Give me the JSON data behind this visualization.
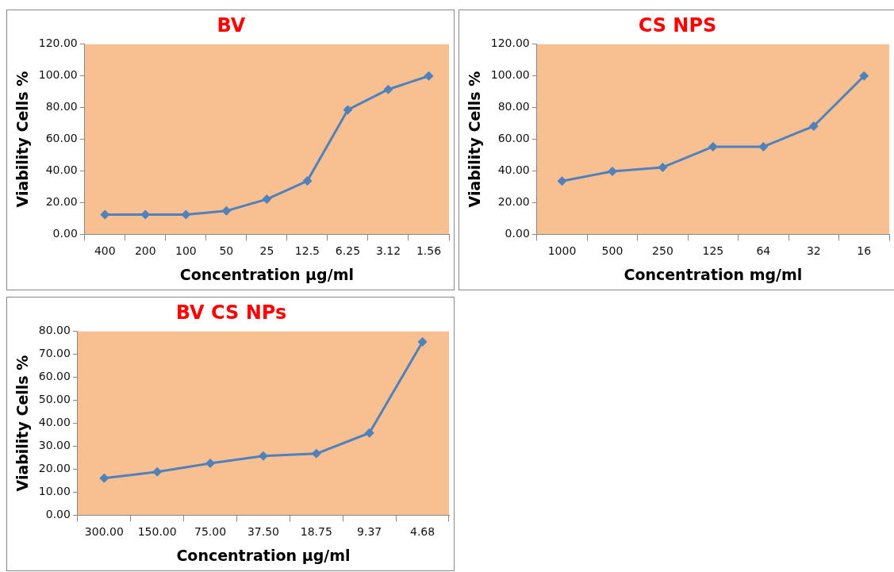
{
  "chart_data": [
    {
      "type": "line",
      "title": "BV",
      "xlabel": "Concentration µg/ml",
      "ylabel": "Viability Cells %",
      "categories": [
        "400",
        "200",
        "100",
        "50",
        "25",
        "12.5",
        "6.25",
        "3.12",
        "1.56"
      ],
      "series": [
        {
          "color": "#4f81bd",
          "values": [
            12.5,
            12.5,
            12.5,
            14.8,
            22.2,
            33.7,
            78.6,
            91.5,
            100
          ]
        }
      ],
      "ylim": [
        0,
        120
      ],
      "yticks": [
        {
          "value": 0,
          "label": "0.00"
        },
        {
          "value": 20,
          "label": "20.00"
        },
        {
          "value": 40,
          "label": "40.00"
        },
        {
          "value": 60,
          "label": "60.00"
        },
        {
          "value": 80,
          "label": "80.00"
        },
        {
          "value": 100,
          "label": "100.00"
        },
        {
          "value": 120,
          "label": "120.00"
        }
      ],
      "grid": false,
      "legend": false,
      "marker": "diamond",
      "line_style": "solid"
    },
    {
      "type": "line",
      "title": "CS NPS",
      "xlabel": "Concentration mg/ml",
      "ylabel": "Viability Cells %",
      "categories": [
        "1000",
        "500",
        "250",
        "125",
        "64",
        "32",
        "16"
      ],
      "series": [
        {
          "color": "#4f81bd",
          "values": [
            33.6,
            39.8,
            42.3,
            55.3,
            55.3,
            68.3,
            100
          ]
        }
      ],
      "ylim": [
        0,
        120
      ],
      "yticks": [
        {
          "value": 0,
          "label": "0.00"
        },
        {
          "value": 20,
          "label": "20.00"
        },
        {
          "value": 40,
          "label": "40.00"
        },
        {
          "value": 60,
          "label": "60.00"
        },
        {
          "value": 80,
          "label": "80.00"
        },
        {
          "value": 100,
          "label": "100.00"
        },
        {
          "value": 120,
          "label": "120.00"
        }
      ],
      "grid": false,
      "legend": false,
      "marker": "diamond",
      "line_style": "solid"
    },
    {
      "type": "line",
      "title": "BV CS NPs",
      "xlabel": "Concentration µg/ml",
      "ylabel": "Viability Cells %",
      "categories": [
        "300.00",
        "150.00",
        "75.00",
        "37.50",
        "18.75",
        "9.37",
        "4.68"
      ],
      "series": [
        {
          "color": "#4f81bd",
          "values": [
            16.1,
            18.9,
            22.6,
            25.8,
            26.8,
            35.8,
            75.4
          ]
        }
      ],
      "ylim": [
        0,
        80
      ],
      "yticks": [
        {
          "value": 0,
          "label": "0.00"
        },
        {
          "value": 10,
          "label": "10.00"
        },
        {
          "value": 20,
          "label": "20.00"
        },
        {
          "value": 30,
          "label": "30.00"
        },
        {
          "value": 40,
          "label": "40.00"
        },
        {
          "value": 50,
          "label": "50.00"
        },
        {
          "value": 60,
          "label": "60.00"
        },
        {
          "value": 70,
          "label": "70.00"
        },
        {
          "value": 80,
          "label": "80.00"
        }
      ],
      "grid": false,
      "legend": false,
      "marker": "diamond",
      "line_style": "solid"
    }
  ]
}
